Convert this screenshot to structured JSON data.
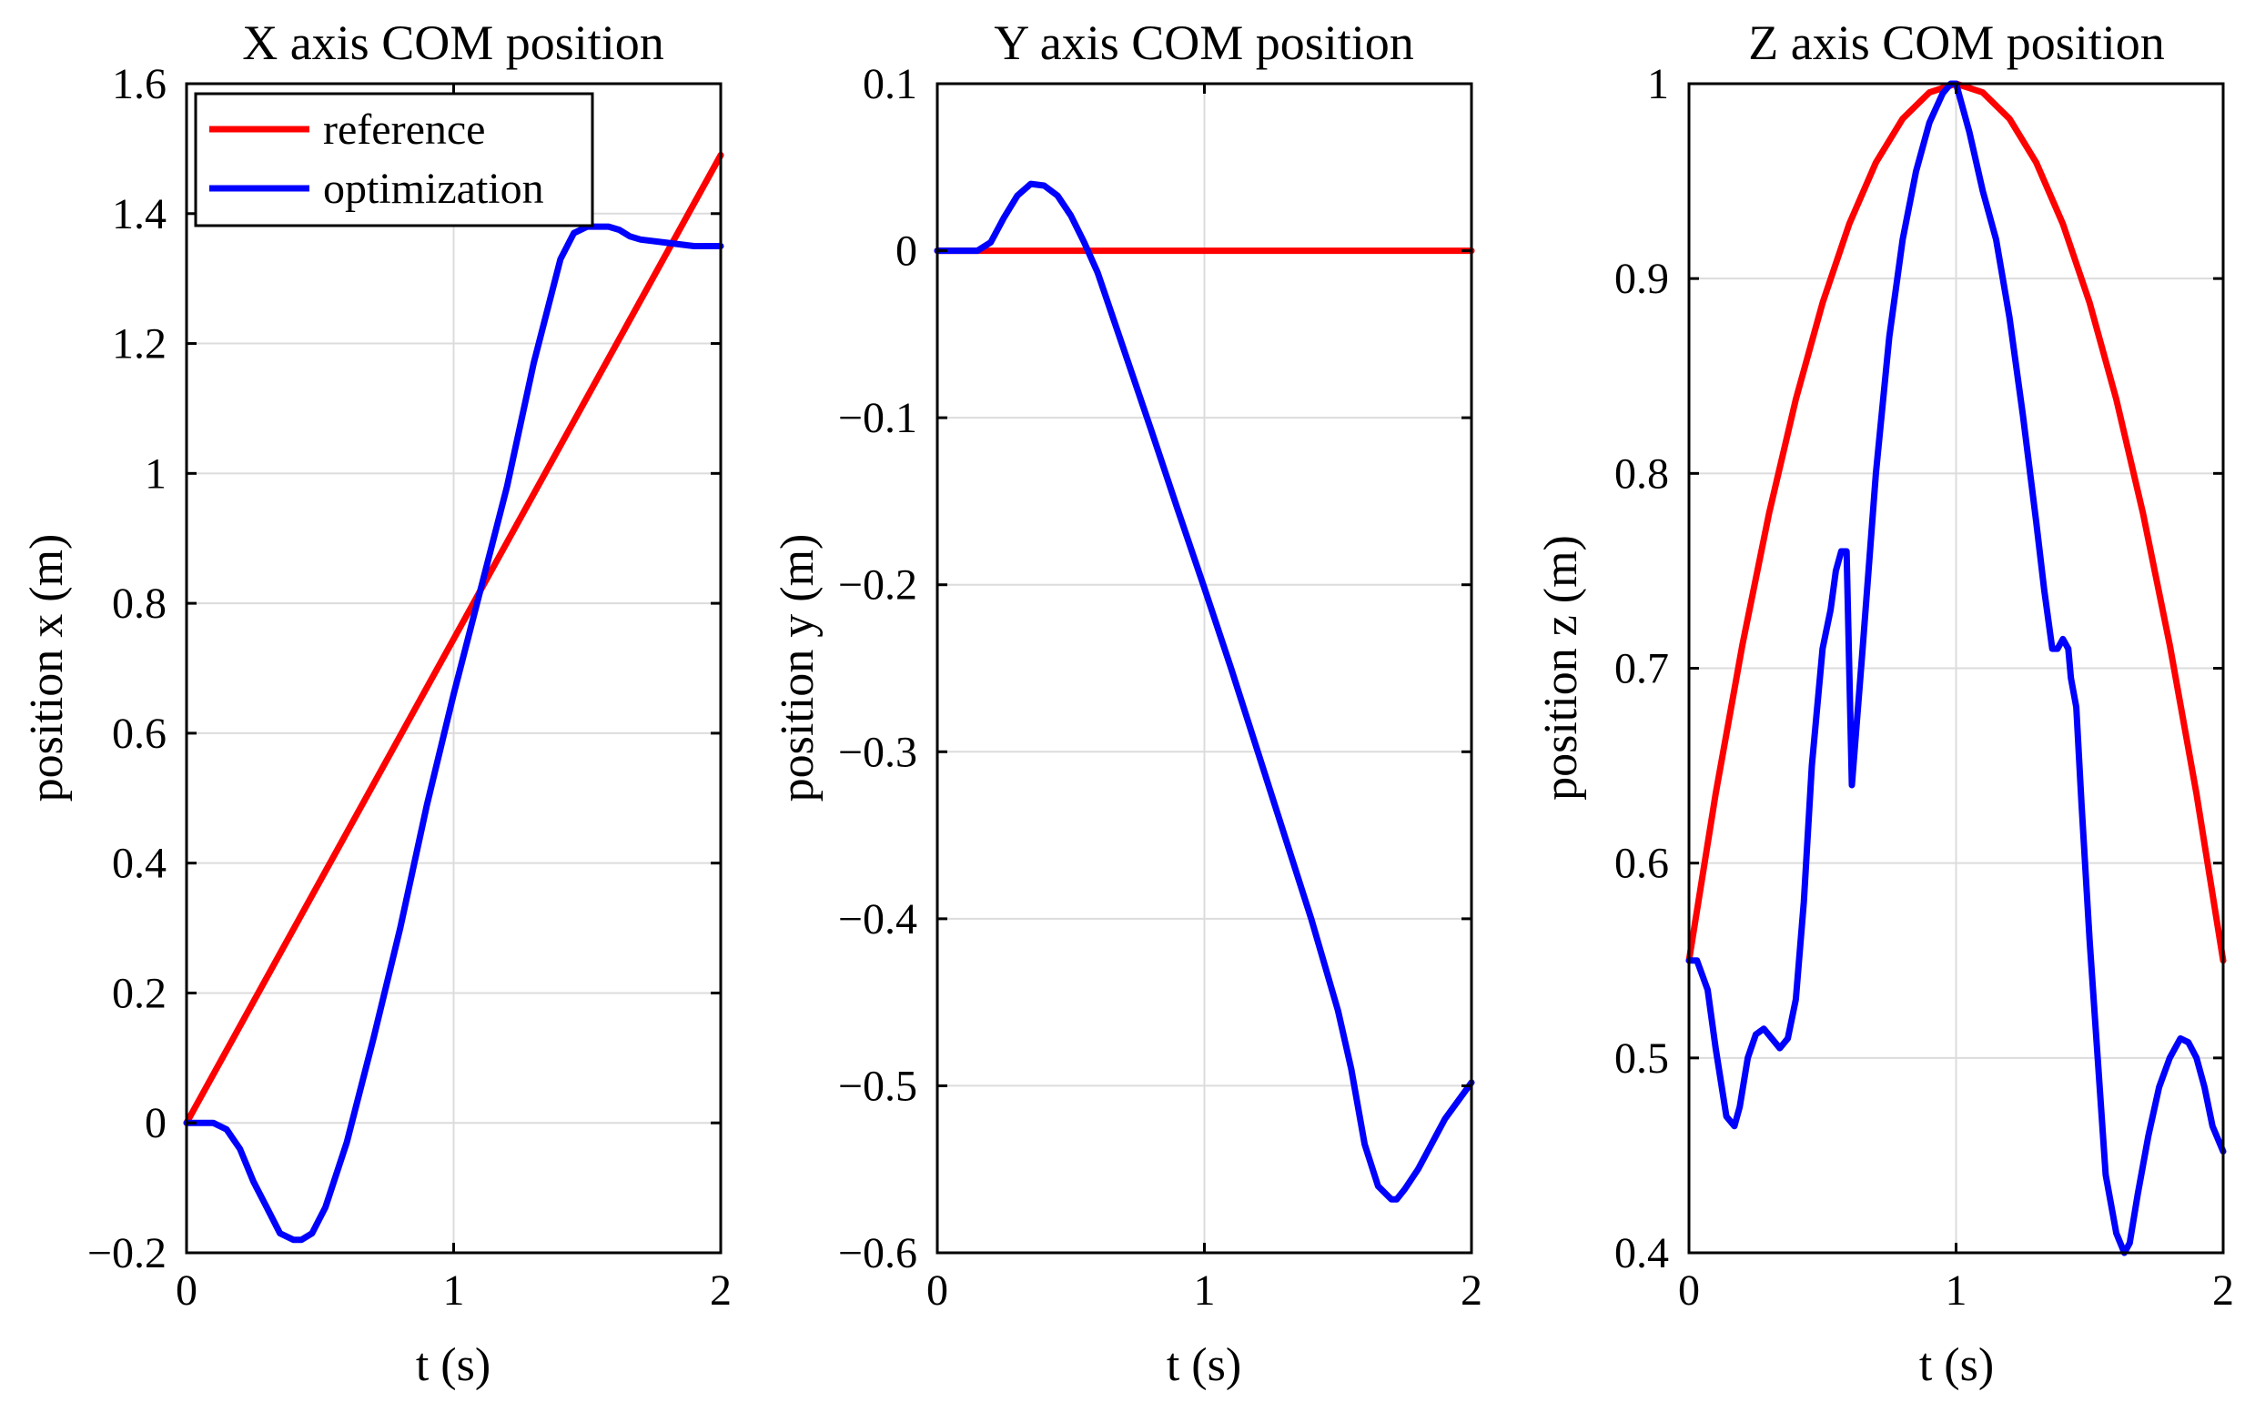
{
  "chart_data": [
    {
      "type": "line",
      "title": "X axis COM position",
      "xlabel": "t (s)",
      "ylabel": "position x (m)",
      "xlim": [
        0,
        2
      ],
      "ylim": [
        -0.2,
        1.6
      ],
      "xticks": [
        0,
        1,
        2
      ],
      "xtick_labels": [
        "0",
        "1",
        "2"
      ],
      "yticks": [
        -0.2,
        0,
        0.2,
        0.4,
        0.6,
        0.8,
        1,
        1.2,
        1.4,
        1.6
      ],
      "ytick_labels": [
        "−0.2",
        "0",
        "0.2",
        "0.4",
        "0.6",
        "0.8",
        "1",
        "1.2",
        "1.4",
        "1.6"
      ],
      "grid": true,
      "legend": {
        "location": "top-left",
        "entries": [
          "reference",
          "optimization"
        ]
      },
      "series": [
        {
          "name": "reference",
          "color": "#ff0000",
          "x": [
            0,
            2
          ],
          "y": [
            0,
            1.49
          ]
        },
        {
          "name": "optimization",
          "color": "#0000ff",
          "x": [
            0,
            0.05,
            0.1,
            0.15,
            0.2,
            0.25,
            0.3,
            0.35,
            0.4,
            0.43,
            0.47,
            0.52,
            0.6,
            0.7,
            0.8,
            0.9,
            1.0,
            1.1,
            1.2,
            1.3,
            1.4,
            1.45,
            1.5,
            1.55,
            1.58,
            1.62,
            1.66,
            1.7,
            1.8,
            1.9,
            2.0
          ],
          "y": [
            0,
            0.0,
            0.0,
            -0.01,
            -0.04,
            -0.09,
            -0.13,
            -0.17,
            -0.18,
            -0.18,
            -0.17,
            -0.13,
            -0.03,
            0.13,
            0.3,
            0.49,
            0.66,
            0.82,
            0.98,
            1.17,
            1.33,
            1.37,
            1.38,
            1.38,
            1.38,
            1.375,
            1.365,
            1.36,
            1.355,
            1.35,
            1.35
          ]
        }
      ]
    },
    {
      "type": "line",
      "title": "Y axis COM position",
      "xlabel": "t (s)",
      "ylabel": "position y (m)",
      "xlim": [
        0,
        2
      ],
      "ylim": [
        -0.6,
        0.1
      ],
      "xticks": [
        0,
        1,
        2
      ],
      "xtick_labels": [
        "0",
        "1",
        "2"
      ],
      "yticks": [
        -0.6,
        -0.5,
        -0.4,
        -0.3,
        -0.2,
        -0.1,
        0,
        0.1
      ],
      "ytick_labels": [
        "−0.6",
        "−0.5",
        "−0.4",
        "−0.3",
        "−0.2",
        "−0.1",
        "0",
        "0.1"
      ],
      "grid": true,
      "series": [
        {
          "name": "reference",
          "color": "#ff0000",
          "x": [
            0,
            2
          ],
          "y": [
            0,
            0
          ]
        },
        {
          "name": "optimization",
          "color": "#0000ff",
          "x": [
            0,
            0.1,
            0.15,
            0.2,
            0.25,
            0.3,
            0.35,
            0.4,
            0.45,
            0.5,
            0.55,
            0.6,
            0.7,
            0.8,
            0.9,
            1.0,
            1.1,
            1.2,
            1.3,
            1.4,
            1.5,
            1.55,
            1.6,
            1.65,
            1.7,
            1.72,
            1.75,
            1.8,
            1.85,
            1.9,
            2.0
          ],
          "y": [
            0,
            0,
            0,
            0.005,
            0.02,
            0.033,
            0.04,
            0.039,
            0.033,
            0.021,
            0.005,
            -0.013,
            -0.06,
            -0.107,
            -0.155,
            -0.202,
            -0.25,
            -0.3,
            -0.35,
            -0.4,
            -0.455,
            -0.49,
            -0.535,
            -0.56,
            -0.568,
            -0.568,
            -0.562,
            -0.55,
            -0.535,
            -0.52,
            -0.498
          ]
        }
      ]
    },
    {
      "type": "line",
      "title": "Z axis COM position",
      "xlabel": "t (s)",
      "ylabel": "position z (m)",
      "xlim": [
        0,
        2
      ],
      "ylim": [
        0.4,
        1
      ],
      "xticks": [
        0,
        1,
        2
      ],
      "xtick_labels": [
        "0",
        "1",
        "2"
      ],
      "yticks": [
        0.4,
        0.5,
        0.6,
        0.7,
        0.8,
        0.9,
        1
      ],
      "ytick_labels": [
        "0.4",
        "0.5",
        "0.6",
        "0.7",
        "0.8",
        "0.9",
        "1"
      ],
      "grid": true,
      "series": [
        {
          "name": "reference",
          "color": "#ff0000",
          "x": [
            0,
            0.1,
            0.2,
            0.3,
            0.4,
            0.5,
            0.6,
            0.7,
            0.8,
            0.9,
            1.0,
            1.1,
            1.2,
            1.3,
            1.4,
            1.5,
            1.6,
            1.7,
            1.8,
            1.9,
            2.0
          ],
          "y": [
            0.55,
            0.6355,
            0.712,
            0.7795,
            0.838,
            0.8875,
            0.928,
            0.9595,
            0.982,
            0.9955,
            1.0,
            0.9955,
            0.982,
            0.9595,
            0.928,
            0.8875,
            0.838,
            0.7795,
            0.712,
            0.6355,
            0.55
          ]
        },
        {
          "name": "optimization",
          "color": "#0000ff",
          "x": [
            0,
            0.03,
            0.07,
            0.1,
            0.14,
            0.17,
            0.19,
            0.22,
            0.25,
            0.28,
            0.31,
            0.34,
            0.37,
            0.4,
            0.43,
            0.46,
            0.5,
            0.53,
            0.55,
            0.57,
            0.59,
            0.6,
            0.61,
            0.65,
            0.7,
            0.75,
            0.8,
            0.85,
            0.9,
            0.95,
            0.98,
            1.0,
            1.02,
            1.05,
            1.1,
            1.15,
            1.2,
            1.25,
            1.3,
            1.33,
            1.36,
            1.38,
            1.4,
            1.42,
            1.43,
            1.45,
            1.47,
            1.5,
            1.53,
            1.56,
            1.6,
            1.63,
            1.65,
            1.68,
            1.72,
            1.76,
            1.8,
            1.84,
            1.87,
            1.9,
            1.93,
            1.96,
            2.0
          ],
          "y": [
            0.55,
            0.55,
            0.535,
            0.505,
            0.47,
            0.465,
            0.475,
            0.5,
            0.512,
            0.515,
            0.51,
            0.505,
            0.51,
            0.53,
            0.58,
            0.65,
            0.71,
            0.73,
            0.75,
            0.76,
            0.76,
            0.7,
            0.64,
            0.71,
            0.8,
            0.87,
            0.92,
            0.955,
            0.98,
            0.995,
            1.0,
            1.0,
            0.99,
            0.975,
            0.945,
            0.92,
            0.88,
            0.83,
            0.775,
            0.74,
            0.71,
            0.71,
            0.715,
            0.71,
            0.695,
            0.68,
            0.63,
            0.56,
            0.5,
            0.44,
            0.41,
            0.4,
            0.405,
            0.43,
            0.46,
            0.485,
            0.5,
            0.51,
            0.508,
            0.5,
            0.485,
            0.465,
            0.452
          ]
        }
      ]
    }
  ]
}
